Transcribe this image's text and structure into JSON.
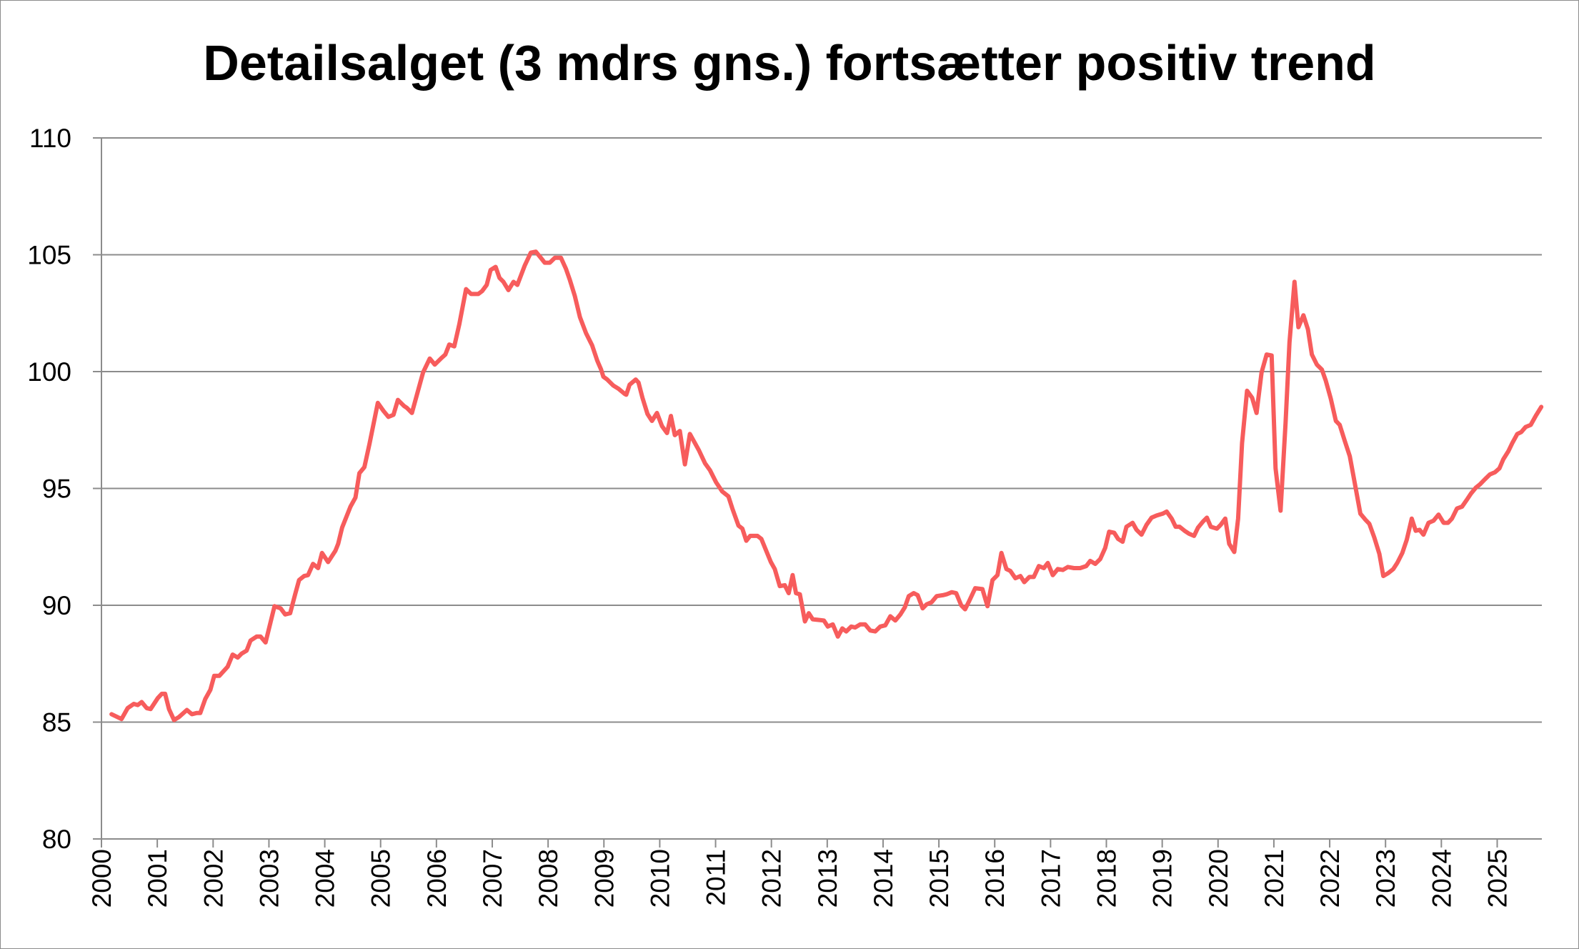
{
  "chart_data": {
    "type": "line",
    "title": "Detailsalget (3 mdrs gns.) fortsætter positiv trend",
    "xlabel": "",
    "ylabel": "",
    "xlim": [
      2000,
      2025.8
    ],
    "ylim": [
      80,
      110
    ],
    "y_ticks": [
      80,
      85,
      90,
      95,
      100,
      105,
      110
    ],
    "x_ticks": [
      "2000",
      "2001",
      "2002",
      "2003",
      "2004",
      "2005",
      "2006",
      "2007",
      "2008",
      "2009",
      "2010",
      "2011",
      "2012",
      "2013",
      "2014",
      "2015",
      "2016",
      "2017",
      "2018",
      "2019",
      "2020",
      "2021",
      "2022",
      "2023",
      "2024",
      "2025"
    ],
    "grid": {
      "horizontal": true,
      "vertical": false
    },
    "legend": "none",
    "colors": {
      "line": "#f75c5c",
      "grid": "#8c8c8c"
    },
    "series": [
      {
        "points": [
          [
            2000.18,
            85.34
          ],
          [
            2000.36,
            85.13
          ],
          [
            2000.47,
            85.6
          ],
          [
            2000.58,
            85.78
          ],
          [
            2000.65,
            85.73
          ],
          [
            2000.72,
            85.86
          ],
          [
            2000.81,
            85.6
          ],
          [
            2000.88,
            85.56
          ],
          [
            2001.01,
            86.03
          ],
          [
            2001.08,
            86.21
          ],
          [
            2001.14,
            86.21
          ],
          [
            2001.21,
            85.56
          ],
          [
            2001.3,
            85.09
          ],
          [
            2001.39,
            85.22
          ],
          [
            2001.53,
            85.52
          ],
          [
            2001.62,
            85.34
          ],
          [
            2001.71,
            85.39
          ],
          [
            2001.77,
            85.39
          ],
          [
            2001.86,
            85.99
          ],
          [
            2001.95,
            86.38
          ],
          [
            2002.02,
            86.98
          ],
          [
            2002.11,
            86.98
          ],
          [
            2002.26,
            87.37
          ],
          [
            2002.35,
            87.89
          ],
          [
            2002.44,
            87.76
          ],
          [
            2002.51,
            87.93
          ],
          [
            2002.6,
            88.06
          ],
          [
            2002.67,
            88.49
          ],
          [
            2002.78,
            88.66
          ],
          [
            2002.85,
            88.66
          ],
          [
            2002.94,
            88.41
          ],
          [
            2003.1,
            89.96
          ],
          [
            2003.21,
            89.87
          ],
          [
            2003.29,
            89.61
          ],
          [
            2003.38,
            89.66
          ],
          [
            2003.47,
            90.47
          ],
          [
            2003.54,
            91.08
          ],
          [
            2003.63,
            91.25
          ],
          [
            2003.7,
            91.29
          ],
          [
            2003.79,
            91.77
          ],
          [
            2003.88,
            91.59
          ],
          [
            2003.95,
            92.24
          ],
          [
            2004.06,
            91.85
          ],
          [
            2004.19,
            92.33
          ],
          [
            2004.24,
            92.63
          ],
          [
            2004.31,
            93.32
          ],
          [
            2004.46,
            94.22
          ],
          [
            2004.55,
            94.61
          ],
          [
            2004.62,
            95.65
          ],
          [
            2004.71,
            95.91
          ],
          [
            2004.8,
            96.9
          ],
          [
            2004.95,
            98.66
          ],
          [
            2005.05,
            98.32
          ],
          [
            2005.14,
            98.06
          ],
          [
            2005.23,
            98.15
          ],
          [
            2005.31,
            98.79
          ],
          [
            2005.42,
            98.53
          ],
          [
            2005.47,
            98.45
          ],
          [
            2005.56,
            98.23
          ],
          [
            2005.76,
            99.96
          ],
          [
            2005.88,
            100.56
          ],
          [
            2005.97,
            100.3
          ],
          [
            2006.08,
            100.56
          ],
          [
            2006.16,
            100.73
          ],
          [
            2006.23,
            101.16
          ],
          [
            2006.32,
            101.08
          ],
          [
            2006.41,
            102.03
          ],
          [
            2006.53,
            103.53
          ],
          [
            2006.62,
            103.32
          ],
          [
            2006.75,
            103.32
          ],
          [
            2006.82,
            103.45
          ],
          [
            2006.9,
            103.71
          ],
          [
            2006.97,
            104.35
          ],
          [
            2007.06,
            104.48
          ],
          [
            2007.13,
            104.01
          ],
          [
            2007.2,
            103.84
          ],
          [
            2007.29,
            103.49
          ],
          [
            2007.38,
            103.84
          ],
          [
            2007.45,
            103.71
          ],
          [
            2007.58,
            104.53
          ],
          [
            2007.69,
            105.09
          ],
          [
            2007.78,
            105.13
          ],
          [
            2007.87,
            104.87
          ],
          [
            2007.94,
            104.66
          ],
          [
            2008.03,
            104.66
          ],
          [
            2008.12,
            104.87
          ],
          [
            2008.23,
            104.87
          ],
          [
            2008.32,
            104.4
          ],
          [
            2008.39,
            103.92
          ],
          [
            2008.48,
            103.23
          ],
          [
            2008.57,
            102.33
          ],
          [
            2008.68,
            101.64
          ],
          [
            2008.79,
            101.12
          ],
          [
            2008.88,
            100.47
          ],
          [
            2008.95,
            100.09
          ],
          [
            2008.99,
            99.78
          ],
          [
            2009.06,
            99.66
          ],
          [
            2009.17,
            99.4
          ],
          [
            2009.26,
            99.27
          ],
          [
            2009.37,
            99.05
          ],
          [
            2009.4,
            99.01
          ],
          [
            2009.46,
            99.44
          ],
          [
            2009.57,
            99.66
          ],
          [
            2009.62,
            99.53
          ],
          [
            2009.69,
            98.88
          ],
          [
            2009.78,
            98.19
          ],
          [
            2009.86,
            97.89
          ],
          [
            2009.95,
            98.23
          ],
          [
            2010.04,
            97.67
          ],
          [
            2010.13,
            97.37
          ],
          [
            2010.2,
            98.1
          ],
          [
            2010.27,
            97.28
          ],
          [
            2010.36,
            97.46
          ],
          [
            2010.45,
            96.03
          ],
          [
            2010.54,
            97.33
          ],
          [
            2010.7,
            96.64
          ],
          [
            2010.81,
            96.08
          ],
          [
            2010.9,
            95.78
          ],
          [
            2011.01,
            95.26
          ],
          [
            2011.12,
            94.87
          ],
          [
            2011.23,
            94.66
          ],
          [
            2011.3,
            94.14
          ],
          [
            2011.41,
            93.41
          ],
          [
            2011.48,
            93.28
          ],
          [
            2011.55,
            92.76
          ],
          [
            2011.62,
            92.97
          ],
          [
            2011.75,
            92.97
          ],
          [
            2011.82,
            92.84
          ],
          [
            2011.9,
            92.37
          ],
          [
            2011.99,
            91.85
          ],
          [
            2012.06,
            91.55
          ],
          [
            2012.15,
            90.82
          ],
          [
            2012.24,
            90.86
          ],
          [
            2012.31,
            90.52
          ],
          [
            2012.38,
            91.29
          ],
          [
            2012.44,
            90.52
          ],
          [
            2012.51,
            90.47
          ],
          [
            2012.6,
            89.31
          ],
          [
            2012.67,
            89.66
          ],
          [
            2012.74,
            89.4
          ],
          [
            2012.94,
            89.35
          ],
          [
            2013.01,
            89.09
          ],
          [
            2013.1,
            89.18
          ],
          [
            2013.19,
            88.66
          ],
          [
            2013.27,
            89.01
          ],
          [
            2013.34,
            88.88
          ],
          [
            2013.43,
            89.09
          ],
          [
            2013.5,
            89.05
          ],
          [
            2013.59,
            89.18
          ],
          [
            2013.68,
            89.18
          ],
          [
            2013.77,
            88.92
          ],
          [
            2013.86,
            88.88
          ],
          [
            2013.95,
            89.09
          ],
          [
            2014.04,
            89.14
          ],
          [
            2014.13,
            89.53
          ],
          [
            2014.22,
            89.35
          ],
          [
            2014.31,
            89.61
          ],
          [
            2014.39,
            89.91
          ],
          [
            2014.46,
            90.39
          ],
          [
            2014.55,
            90.52
          ],
          [
            2014.62,
            90.43
          ],
          [
            2014.71,
            89.87
          ],
          [
            2014.78,
            90.04
          ],
          [
            2014.87,
            90.13
          ],
          [
            2014.96,
            90.39
          ],
          [
            2015.07,
            90.43
          ],
          [
            2015.14,
            90.47
          ],
          [
            2015.23,
            90.56
          ],
          [
            2015.31,
            90.52
          ],
          [
            2015.4,
            90.0
          ],
          [
            2015.47,
            89.83
          ],
          [
            2015.54,
            90.17
          ],
          [
            2015.65,
            90.73
          ],
          [
            2015.78,
            90.69
          ],
          [
            2015.87,
            89.96
          ],
          [
            2015.96,
            91.08
          ],
          [
            2016.05,
            91.29
          ],
          [
            2016.12,
            92.24
          ],
          [
            2016.21,
            91.55
          ],
          [
            2016.28,
            91.47
          ],
          [
            2016.37,
            91.16
          ],
          [
            2016.46,
            91.25
          ],
          [
            2016.53,
            90.99
          ],
          [
            2016.62,
            91.21
          ],
          [
            2016.7,
            91.21
          ],
          [
            2016.79,
            91.68
          ],
          [
            2016.88,
            91.59
          ],
          [
            2016.95,
            91.81
          ],
          [
            2017.04,
            91.29
          ],
          [
            2017.13,
            91.55
          ],
          [
            2017.22,
            91.51
          ],
          [
            2017.31,
            91.64
          ],
          [
            2017.42,
            91.59
          ],
          [
            2017.53,
            91.59
          ],
          [
            2017.64,
            91.68
          ],
          [
            2017.71,
            91.9
          ],
          [
            2017.8,
            91.77
          ],
          [
            2017.89,
            91.98
          ],
          [
            2017.98,
            92.46
          ],
          [
            2018.05,
            93.15
          ],
          [
            2018.14,
            93.1
          ],
          [
            2018.21,
            92.84
          ],
          [
            2018.29,
            92.72
          ],
          [
            2018.36,
            93.36
          ],
          [
            2018.47,
            93.53
          ],
          [
            2018.54,
            93.23
          ],
          [
            2018.63,
            93.02
          ],
          [
            2018.72,
            93.45
          ],
          [
            2018.81,
            93.75
          ],
          [
            2018.9,
            93.84
          ],
          [
            2019.01,
            93.92
          ],
          [
            2019.08,
            94.01
          ],
          [
            2019.17,
            93.71
          ],
          [
            2019.24,
            93.36
          ],
          [
            2019.31,
            93.36
          ],
          [
            2019.4,
            93.19
          ],
          [
            2019.48,
            93.06
          ],
          [
            2019.57,
            92.97
          ],
          [
            2019.64,
            93.32
          ],
          [
            2019.73,
            93.58
          ],
          [
            2019.8,
            93.75
          ],
          [
            2019.87,
            93.36
          ],
          [
            2019.98,
            93.28
          ],
          [
            2020.05,
            93.45
          ],
          [
            2020.13,
            93.71
          ],
          [
            2020.2,
            92.63
          ],
          [
            2020.29,
            92.28
          ],
          [
            2020.36,
            93.71
          ],
          [
            2020.43,
            96.94
          ],
          [
            2020.52,
            99.18
          ],
          [
            2020.61,
            98.88
          ],
          [
            2020.69,
            98.23
          ],
          [
            2020.78,
            99.96
          ],
          [
            2020.87,
            100.73
          ],
          [
            2020.96,
            100.69
          ],
          [
            2021.03,
            95.86
          ],
          [
            2021.12,
            94.05
          ],
          [
            2021.21,
            97.8
          ],
          [
            2021.28,
            101.25
          ],
          [
            2021.37,
            103.84
          ],
          [
            2021.44,
            101.9
          ],
          [
            2021.53,
            102.41
          ],
          [
            2021.61,
            101.81
          ],
          [
            2021.68,
            100.73
          ],
          [
            2021.77,
            100.3
          ],
          [
            2021.86,
            100.09
          ],
          [
            2021.93,
            99.61
          ],
          [
            2022.02,
            98.84
          ],
          [
            2022.11,
            97.89
          ],
          [
            2022.18,
            97.72
          ],
          [
            2022.27,
            97.03
          ],
          [
            2022.36,
            96.38
          ],
          [
            2022.45,
            95.22
          ],
          [
            2022.55,
            93.92
          ],
          [
            2022.64,
            93.66
          ],
          [
            2022.71,
            93.49
          ],
          [
            2022.8,
            92.89
          ],
          [
            2022.89,
            92.2
          ],
          [
            2022.96,
            91.25
          ],
          [
            2023.05,
            91.38
          ],
          [
            2023.14,
            91.55
          ],
          [
            2023.21,
            91.81
          ],
          [
            2023.3,
            92.24
          ],
          [
            2023.38,
            92.8
          ],
          [
            2023.47,
            93.71
          ],
          [
            2023.54,
            93.19
          ],
          [
            2023.61,
            93.23
          ],
          [
            2023.68,
            93.02
          ],
          [
            2023.77,
            93.53
          ],
          [
            2023.86,
            93.62
          ],
          [
            2023.95,
            93.88
          ],
          [
            2024.04,
            93.53
          ],
          [
            2024.12,
            93.53
          ],
          [
            2024.19,
            93.71
          ],
          [
            2024.28,
            94.14
          ],
          [
            2024.37,
            94.22
          ],
          [
            2024.46,
            94.53
          ],
          [
            2024.53,
            94.78
          ],
          [
            2024.62,
            95.04
          ],
          [
            2024.69,
            95.17
          ],
          [
            2024.78,
            95.39
          ],
          [
            2024.87,
            95.6
          ],
          [
            2024.96,
            95.69
          ],
          [
            2025.04,
            95.86
          ],
          [
            2025.11,
            96.25
          ],
          [
            2025.2,
            96.59
          ],
          [
            2025.27,
            96.94
          ],
          [
            2025.36,
            97.33
          ],
          [
            2025.43,
            97.41
          ],
          [
            2025.51,
            97.63
          ],
          [
            2025.6,
            97.72
          ],
          [
            2025.69,
            98.1
          ],
          [
            2025.79,
            98.49
          ]
        ]
      }
    ]
  }
}
